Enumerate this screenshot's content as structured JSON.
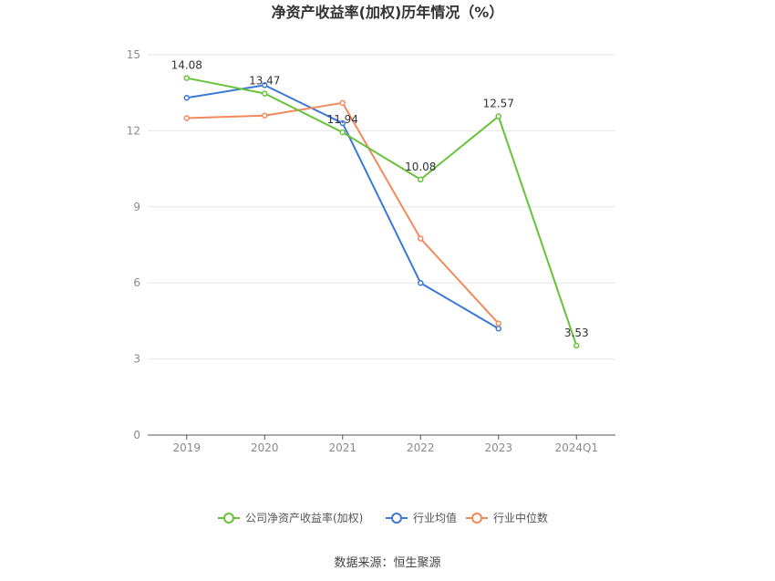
{
  "chart_data": {
    "type": "line",
    "title": "净资产收益率(加权)历年情况（%）",
    "categories": [
      "2019",
      "2020",
      "2021",
      "2022",
      "2023",
      "2024Q1"
    ],
    "ylim": [
      0,
      15
    ],
    "yticks": [
      0,
      3,
      6,
      9,
      12,
      15
    ],
    "grid": true,
    "legend_position": "bottom",
    "series": [
      {
        "name": "公司净资产收益率(加权)",
        "color": "#67c23a",
        "values": [
          14.08,
          13.47,
          11.94,
          10.08,
          12.57,
          3.53
        ],
        "labels": [
          "14.08",
          "13.47",
          "11.94",
          "10.08",
          "12.57",
          "3.53"
        ]
      },
      {
        "name": "行业均值",
        "color": "#3c78d8",
        "values": [
          13.3,
          13.8,
          12.3,
          6.0,
          4.2,
          null
        ]
      },
      {
        "name": "行业中位数",
        "color": "#f08a5d",
        "values": [
          12.5,
          12.6,
          13.1,
          7.75,
          4.4,
          null
        ]
      }
    ],
    "source": "数据来源：恒生聚源"
  }
}
